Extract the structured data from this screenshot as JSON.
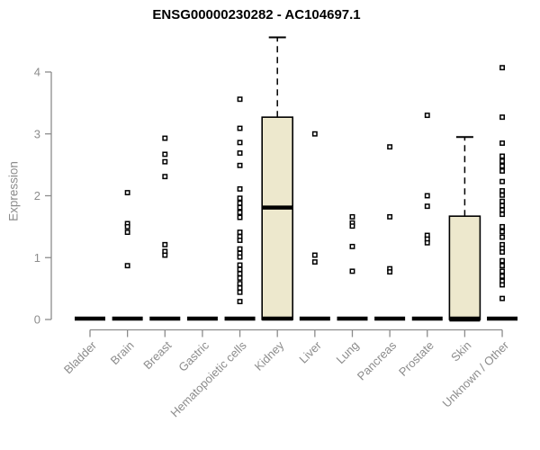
{
  "chart_data": {
    "type": "boxplot",
    "title": "ENSG00000230282 - AC104697.1",
    "ylabel": "Expression",
    "xlabel": "",
    "ylim": [
      0,
      4
    ],
    "yticks": [
      0,
      1,
      2,
      3,
      4
    ],
    "grid": false,
    "legend": "none",
    "categories": [
      "Bladder",
      "Brain",
      "Breast",
      "Gastric",
      "Hematopoietic cells",
      "Kidney",
      "Liver",
      "Lung",
      "Pancreas",
      "Prostate",
      "Skin",
      "Unknown / Other"
    ],
    "colors": {
      "box_fill": "#ede8cd",
      "box_border": "#000000",
      "median": "#000000",
      "point": "#000000",
      "point_fill": "#ffffff",
      "axis": "#8c8c8c",
      "tick_label": "#8c8c8c",
      "title": "#000000",
      "background": "#ffffff"
    },
    "groups": [
      {
        "name": "Bladder",
        "median": 0,
        "box": null,
        "points": []
      },
      {
        "name": "Brain",
        "median": 0,
        "box": null,
        "points": [
          2.05,
          1.55,
          1.5,
          1.41,
          0.87
        ]
      },
      {
        "name": "Breast",
        "median": 0,
        "box": null,
        "points": [
          2.93,
          2.67,
          2.55,
          2.31,
          1.21,
          1.1,
          1.04
        ]
      },
      {
        "name": "Gastric",
        "median": 0,
        "box": null,
        "points": []
      },
      {
        "name": "Hematopoietic cells",
        "median": 0,
        "box": null,
        "points": [
          3.56,
          3.09,
          2.86,
          2.69,
          2.49,
          2.11,
          1.96,
          1.88,
          1.81,
          1.73,
          1.65,
          1.41,
          1.34,
          1.28,
          1.14,
          1.07,
          1.01,
          0.88,
          0.81,
          0.74,
          0.67,
          0.58,
          0.51,
          0.44,
          0.29
        ]
      },
      {
        "name": "Kidney",
        "median": 1.81,
        "box": {
          "q1": 0,
          "q3": 3.27,
          "whisker_low": 0,
          "whisker_high": 4.56
        },
        "points": []
      },
      {
        "name": "Liver",
        "median": 0,
        "box": null,
        "points": [
          3.0,
          1.04,
          0.93
        ]
      },
      {
        "name": "Lung",
        "median": 0,
        "box": null,
        "points": [
          1.66,
          1.56,
          1.51,
          1.18,
          0.78
        ]
      },
      {
        "name": "Pancreas",
        "median": 0,
        "box": null,
        "points": [
          2.79,
          1.66,
          0.82,
          0.77
        ]
      },
      {
        "name": "Prostate",
        "median": 0,
        "box": null,
        "points": [
          3.3,
          2.0,
          1.83,
          1.36,
          1.3,
          1.24
        ]
      },
      {
        "name": "Skin",
        "median": 0,
        "box": {
          "q1": 0,
          "q3": 1.67,
          "whisker_low": 0,
          "whisker_high": 2.95
        },
        "points": []
      },
      {
        "name": "Unknown / Other",
        "median": 0,
        "box": null,
        "points": [
          4.07,
          3.27,
          2.85,
          2.64,
          2.56,
          2.48,
          2.4,
          2.23,
          2.08,
          2.01,
          1.91,
          1.84,
          1.77,
          1.7,
          1.5,
          1.42,
          1.33,
          1.21,
          1.15,
          1.09,
          0.95,
          0.87,
          0.78,
          0.7,
          0.62,
          0.56,
          0.34
        ]
      }
    ]
  }
}
